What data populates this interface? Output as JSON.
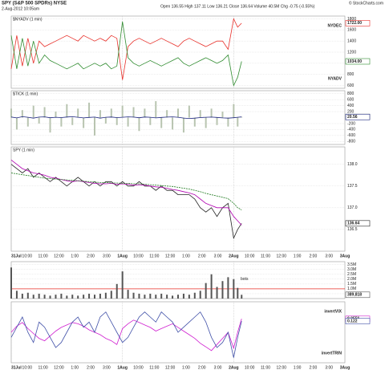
{
  "header": {
    "title": "SPY (S&P 500 SPDRs) NYSE",
    "date": "2-Aug-2012 10:05am",
    "quote": "Open 136.55 High 137.11 Low 136.21 Close 136.64 Volume 40.5M Chg -0.75 (-0.55%)",
    "credit": "© StockCharts.com"
  },
  "x_labels": [
    "31Jul",
    "10:00",
    "11:00",
    "12:00",
    "1:00",
    "2:00",
    "3:00",
    "1Aug",
    "10:00",
    "11:00",
    "12:00",
    "1:00",
    "2:00",
    "3:00",
    "2Aug",
    "10:00",
    "11:00",
    "12:00",
    "1:00",
    "2:00",
    "3:00",
    "3Aug"
  ],
  "chart_data": [
    {
      "type": "line",
      "title": "$NYADV (1 min)",
      "ylim": [
        550,
        1850
      ],
      "yticks": [
        600,
        800,
        1000,
        1200,
        1400,
        1600,
        1800
      ],
      "grid": true,
      "series": [
        {
          "name": "NYDEC",
          "color": "#e8302a",
          "last_label": "1722.00",
          "values": [
            900,
            1500,
            950,
            1450,
            1000,
            1400,
            1300,
            1350,
            1400,
            1450,
            1500,
            1450,
            1400,
            1500,
            1450,
            1400,
            1450,
            1400,
            1500,
            1450,
            700,
            1300,
            1400,
            1450,
            1400,
            1350,
            1400,
            1450,
            1400,
            1350,
            1300,
            1400,
            1450,
            1400,
            1350,
            1300,
            1350,
            1400,
            1400,
            1250,
            1800,
            1650,
            1722
          ]
        },
        {
          "name": "NYADV",
          "color": "#2e8b2e",
          "last_label": "1034.00",
          "values": [
            1500,
            900,
            1450,
            950,
            1400,
            1000,
            1150,
            1050,
            1000,
            950,
            900,
            950,
            1000,
            900,
            950,
            1000,
            950,
            1000,
            900,
            950,
            1750,
            1100,
            1000,
            950,
            1000,
            1050,
            1000,
            950,
            1000,
            1050,
            1100,
            1000,
            950,
            1000,
            1050,
            1100,
            1050,
            1000,
            1050,
            1150,
            600,
            750,
            1034
          ]
        }
      ]
    },
    {
      "type": "bar_line",
      "title": "$TICK (1 min)",
      "ylim": [
        -900,
        900
      ],
      "yticks": [
        -800,
        -600,
        -400,
        -200,
        200,
        400,
        600,
        800
      ],
      "grid": true,
      "series": [
        {
          "type": "bar",
          "color": "#b8c4b0",
          "last_label": "25.00",
          "values": [
            300,
            -400,
            250,
            -300,
            400,
            -200,
            350,
            -500,
            200,
            -300,
            450,
            -250,
            300,
            -350,
            500,
            -600,
            250,
            -200,
            300,
            -250,
            400,
            -300,
            350,
            -450,
            300,
            -250,
            550,
            -350,
            250,
            -400,
            300,
            -500,
            400,
            -300,
            250,
            -350,
            300,
            -250,
            200,
            -300,
            450,
            -300,
            25
          ]
        },
        {
          "type": "line",
          "color": "#1a237e",
          "last_label": "20.56",
          "values": [
            20,
            -10,
            30,
            10,
            -20,
            15,
            25,
            -5,
            10,
            0,
            20,
            30,
            10,
            -10,
            5,
            15,
            -20,
            10,
            20,
            0,
            10,
            25,
            15,
            -5,
            20,
            10,
            -10,
            5,
            15,
            25,
            10,
            -15,
            -30,
            -20,
            0,
            10,
            15,
            5,
            -10,
            -20,
            -5,
            10,
            20.56
          ]
        }
      ]
    },
    {
      "type": "line",
      "title": "SPY (1 min)",
      "ylim": [
        136.0,
        138.4
      ],
      "yticks": [
        {
          "value": 136.5,
          "label": "136.5"
        },
        {
          "value": 137,
          "label": "137.0"
        },
        {
          "value": 137.5,
          "label": "137.5"
        },
        {
          "value": 138,
          "label": "138.0"
        }
      ],
      "grid": true,
      "series": [
        {
          "color": "#222222",
          "last_label": "136.64",
          "values": [
            138.0,
            137.9,
            137.8,
            137.9,
            137.7,
            137.8,
            137.7,
            137.6,
            137.7,
            137.6,
            137.5,
            137.6,
            137.7,
            137.6,
            137.5,
            137.6,
            137.5,
            137.6,
            137.6,
            137.5,
            137.6,
            137.5,
            137.5,
            137.6,
            137.5,
            137.5,
            137.4,
            137.5,
            137.4,
            137.4,
            137.3,
            137.3,
            137.3,
            137.2,
            137.0,
            136.9,
            137.0,
            136.8,
            137.0,
            137.1,
            136.3,
            136.5,
            136.64
          ]
        },
        {
          "color": "#b000b0",
          "values": [
            138.1,
            138.0,
            137.9,
            137.85,
            137.8,
            137.78,
            137.75,
            137.7,
            137.68,
            137.65,
            137.62,
            137.6,
            137.62,
            137.6,
            137.58,
            137.56,
            137.55,
            137.55,
            137.56,
            137.54,
            137.55,
            137.54,
            137.52,
            137.53,
            137.52,
            137.5,
            137.48,
            137.47,
            137.45,
            137.42,
            137.4,
            137.37,
            137.34,
            137.3,
            137.2,
            137.1,
            137.05,
            137.0,
            137.0,
            137.0,
            136.8,
            136.7,
            136.6
          ]
        },
        {
          "color": "#1e7a1e",
          "dash": true,
          "values": [
            137.8,
            137.78,
            137.76,
            137.74,
            137.72,
            137.7,
            137.68,
            137.67,
            137.66,
            137.65,
            137.64,
            137.63,
            137.62,
            137.61,
            137.6,
            137.59,
            137.58,
            137.58,
            137.57,
            137.57,
            137.56,
            137.56,
            137.55,
            137.55,
            137.54,
            137.53,
            137.52,
            137.51,
            137.5,
            137.49,
            137.47,
            137.45,
            137.43,
            137.4,
            137.37,
            137.33,
            137.3,
            137.27,
            137.24,
            137.21,
            137.1,
            137.0,
            136.95
          ]
        }
      ]
    },
    {
      "type": "bar",
      "ylim": [
        0,
        3800000
      ],
      "yticks": [
        {
          "value": 500000,
          "label": "0.5M"
        },
        {
          "value": 1000000,
          "label": "1.0M"
        },
        {
          "value": 1500000,
          "label": "1.5M"
        },
        {
          "value": 2000000,
          "label": "2.0M"
        },
        {
          "value": 2500000,
          "label": "2.5M"
        },
        {
          "value": 3000000,
          "label": "3.0M"
        },
        {
          "value": 3500000,
          "label": "3.5M"
        }
      ],
      "grid": true,
      "annotation": {
        "text": "bots",
        "value": 1000000,
        "color": "#e8302a"
      },
      "series": [
        {
          "color": "#555555",
          "last_label": "389,818",
          "values": [
            3200000,
            800000,
            500000,
            600000,
            400000,
            500000,
            400000,
            300000,
            400000,
            500000,
            300000,
            400000,
            300000,
            400000,
            500000,
            400000,
            500000,
            600000,
            800000,
            1500000,
            2800000,
            900000,
            600000,
            500000,
            400000,
            500000,
            400000,
            500000,
            400000,
            300000,
            400000,
            500000,
            400000,
            600000,
            800000,
            1600000,
            2500000,
            1200000,
            1800000,
            2200000,
            2000000,
            1100000,
            389818
          ]
        }
      ]
    },
    {
      "type": "line",
      "ylim": [
        0.052,
        0.057
      ],
      "y2lim": [
        0.04,
        0.16
      ],
      "grid": false,
      "series": [
        {
          "name": "invertVIX",
          "color": "#d020d0",
          "last_label": "0.0556",
          "values": [
            0.0545,
            0.055,
            0.0553,
            0.0548,
            0.0544,
            0.054,
            0.0538,
            0.0542,
            0.0546,
            0.0549,
            0.0551,
            0.0553,
            0.0552,
            0.055,
            0.0547,
            0.0545,
            0.0543,
            0.054,
            0.0538,
            0.0535,
            0.0548,
            0.0552,
            0.0555,
            0.0553,
            0.0551,
            0.0549,
            0.0546,
            0.0548,
            0.055,
            0.0552,
            0.0549,
            0.0546,
            0.0543,
            0.054,
            0.0536,
            0.0533,
            0.053,
            0.0535,
            0.054,
            0.0545,
            0.0532,
            0.0545,
            0.0556
          ]
        },
        {
          "name": "invertTRIN",
          "color": "#4050a8",
          "axis": "y2",
          "last_label": "0.122",
          "values": [
            0.09,
            0.11,
            0.13,
            0.1,
            0.08,
            0.12,
            0.11,
            0.09,
            0.07,
            0.08,
            0.1,
            0.12,
            0.13,
            0.11,
            0.12,
            0.1,
            0.13,
            0.14,
            0.12,
            0.1,
            0.08,
            0.09,
            0.11,
            0.13,
            0.14,
            0.13,
            0.12,
            0.14,
            0.13,
            0.12,
            0.1,
            0.11,
            0.12,
            0.13,
            0.14,
            0.12,
            0.09,
            0.07,
            0.08,
            0.1,
            0.05,
            0.09,
            0.122
          ]
        }
      ]
    }
  ]
}
